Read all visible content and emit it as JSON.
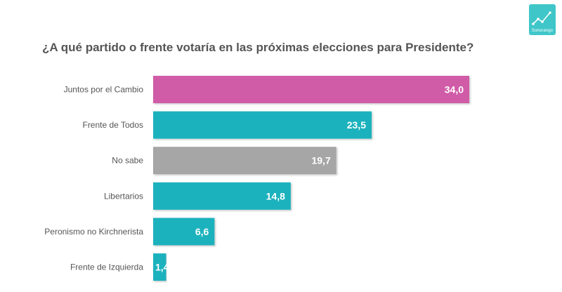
{
  "logo": {
    "text": "Sonorango"
  },
  "chart_data": {
    "type": "bar",
    "orientation": "horizontal",
    "title": "¿A qué partido o frente votaría en las próximas elecciones para Presidente?",
    "categories": [
      "Juntos por el Cambio",
      "Frente de Todos",
      "No sabe",
      "Libertarios",
      "Peronismo no Kirchnerista",
      "Frente de Izquierda"
    ],
    "values": [
      34.0,
      23.5,
      19.7,
      14.8,
      6.6,
      1.4
    ],
    "value_labels": [
      "34,0",
      "23,5",
      "19,7",
      "14,8",
      "6,6",
      "1,4"
    ],
    "colors": [
      "#d05ba8",
      "#1fb2bd",
      "#a6a6a6",
      "#1fb2bd",
      "#1fb2bd",
      "#1fb2bd"
    ],
    "xlim": [
      0,
      34.0
    ],
    "xlabel": "",
    "ylabel": "",
    "grid": false,
    "legend": "none"
  }
}
